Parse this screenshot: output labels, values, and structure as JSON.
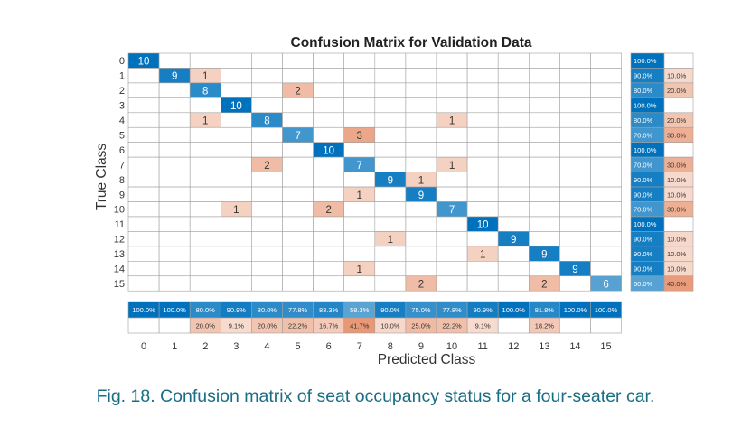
{
  "chart_data": {
    "type": "heatmap",
    "title": "Confusion Matrix for Validation Data",
    "xlabel": "Predicted Class",
    "ylabel": "True Class",
    "classes": [
      "0",
      "1",
      "2",
      "3",
      "4",
      "5",
      "6",
      "7",
      "8",
      "9",
      "10",
      "11",
      "12",
      "13",
      "14",
      "15"
    ],
    "matrix": [
      [
        10,
        0,
        0,
        0,
        0,
        0,
        0,
        0,
        0,
        0,
        0,
        0,
        0,
        0,
        0,
        0
      ],
      [
        0,
        9,
        1,
        0,
        0,
        0,
        0,
        0,
        0,
        0,
        0,
        0,
        0,
        0,
        0,
        0
      ],
      [
        0,
        0,
        8,
        0,
        0,
        2,
        0,
        0,
        0,
        0,
        0,
        0,
        0,
        0,
        0,
        0
      ],
      [
        0,
        0,
        0,
        10,
        0,
        0,
        0,
        0,
        0,
        0,
        0,
        0,
        0,
        0,
        0,
        0
      ],
      [
        0,
        0,
        1,
        0,
        8,
        0,
        0,
        0,
        0,
        0,
        1,
        0,
        0,
        0,
        0,
        0
      ],
      [
        0,
        0,
        0,
        0,
        0,
        7,
        0,
        3,
        0,
        0,
        0,
        0,
        0,
        0,
        0,
        0
      ],
      [
        0,
        0,
        0,
        0,
        0,
        0,
        10,
        0,
        0,
        0,
        0,
        0,
        0,
        0,
        0,
        0
      ],
      [
        0,
        0,
        0,
        0,
        2,
        0,
        0,
        7,
        0,
        0,
        1,
        0,
        0,
        0,
        0,
        0
      ],
      [
        0,
        0,
        0,
        0,
        0,
        0,
        0,
        0,
        9,
        1,
        0,
        0,
        0,
        0,
        0,
        0
      ],
      [
        0,
        0,
        0,
        0,
        0,
        0,
        0,
        1,
        0,
        9,
        0,
        0,
        0,
        0,
        0,
        0
      ],
      [
        0,
        0,
        0,
        1,
        0,
        0,
        2,
        0,
        0,
        0,
        7,
        0,
        0,
        0,
        0,
        0
      ],
      [
        0,
        0,
        0,
        0,
        0,
        0,
        0,
        0,
        0,
        0,
        0,
        10,
        0,
        0,
        0,
        0
      ],
      [
        0,
        0,
        0,
        0,
        0,
        0,
        0,
        0,
        1,
        0,
        0,
        0,
        9,
        0,
        0,
        0
      ],
      [
        0,
        0,
        0,
        0,
        0,
        0,
        0,
        0,
        0,
        0,
        0,
        1,
        0,
        9,
        0,
        0
      ],
      [
        0,
        0,
        0,
        0,
        0,
        0,
        0,
        1,
        0,
        0,
        0,
        0,
        0,
        0,
        9,
        0
      ],
      [
        0,
        0,
        0,
        0,
        0,
        0,
        0,
        0,
        0,
        2,
        0,
        0,
        0,
        2,
        0,
        6
      ]
    ],
    "row_summary": [
      {
        "correct": "100.0%",
        "incorrect": ""
      },
      {
        "correct": "90.0%",
        "incorrect": "10.0%"
      },
      {
        "correct": "80.0%",
        "incorrect": "20.0%"
      },
      {
        "correct": "100.0%",
        "incorrect": ""
      },
      {
        "correct": "80.0%",
        "incorrect": "20.0%"
      },
      {
        "correct": "70.0%",
        "incorrect": "30.0%"
      },
      {
        "correct": "100.0%",
        "incorrect": ""
      },
      {
        "correct": "70.0%",
        "incorrect": "30.0%"
      },
      {
        "correct": "90.0%",
        "incorrect": "10.0%"
      },
      {
        "correct": "90.0%",
        "incorrect": "10.0%"
      },
      {
        "correct": "70.0%",
        "incorrect": "30.0%"
      },
      {
        "correct": "100.0%",
        "incorrect": ""
      },
      {
        "correct": "90.0%",
        "incorrect": "10.0%"
      },
      {
        "correct": "90.0%",
        "incorrect": "10.0%"
      },
      {
        "correct": "90.0%",
        "incorrect": "10.0%"
      },
      {
        "correct": "60.0%",
        "incorrect": "40.0%"
      }
    ],
    "column_summary": [
      {
        "correct": "100.0%",
        "incorrect": ""
      },
      {
        "correct": "100.0%",
        "incorrect": ""
      },
      {
        "correct": "80.0%",
        "incorrect": "20.0%"
      },
      {
        "correct": "90.9%",
        "incorrect": "9.1%"
      },
      {
        "correct": "80.0%",
        "incorrect": "20.0%"
      },
      {
        "correct": "77.8%",
        "incorrect": "22.2%"
      },
      {
        "correct": "83.3%",
        "incorrect": "16.7%"
      },
      {
        "correct": "58.3%",
        "incorrect": "41.7%"
      },
      {
        "correct": "90.0%",
        "incorrect": "10.0%"
      },
      {
        "correct": "75.0%",
        "incorrect": "25.0%"
      },
      {
        "correct": "77.8%",
        "incorrect": "22.2%"
      },
      {
        "correct": "90.9%",
        "incorrect": "9.1%"
      },
      {
        "correct": "100.0%",
        "incorrect": ""
      },
      {
        "correct": "81.8%",
        "incorrect": "18.2%"
      },
      {
        "correct": "100.0%",
        "incorrect": ""
      },
      {
        "correct": "100.0%",
        "incorrect": ""
      }
    ],
    "colors": {
      "diagonal": "#0072bd",
      "off_diagonal": "#d95319",
      "grid": "#a0a0a0"
    }
  },
  "caption": "Fig. 18.  Confusion matrix of seat occupancy status for a four-seater car."
}
